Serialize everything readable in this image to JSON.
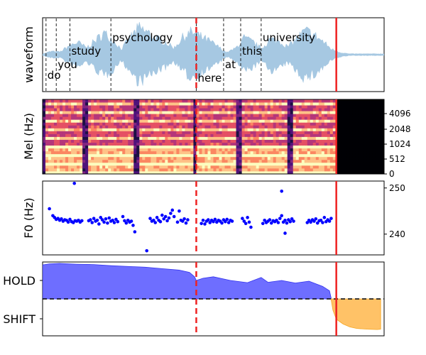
{
  "chart_data": [
    {
      "type": "area",
      "panel": "waveform",
      "ylabel": "waveform",
      "x_range": [
        0,
        1
      ],
      "words": [
        {
          "text": "do",
          "onset": 0.01
        },
        {
          "text": "you",
          "onset": 0.04
        },
        {
          "text": "study",
          "onset": 0.08
        },
        {
          "text": "psychology",
          "onset": 0.2
        },
        {
          "text": "here",
          "onset": 0.45
        },
        {
          "text": "at",
          "onset": 0.53
        },
        {
          "text": "this",
          "onset": 0.58
        },
        {
          "text": "university",
          "onset": 0.64
        }
      ],
      "envelope": [
        0.03,
        0.12,
        0.1,
        0.32,
        0.45,
        0.25,
        0.5,
        0.78,
        0.55,
        0.2,
        0.62,
        0.96,
        0.8,
        0.58,
        0.46,
        0.24,
        0.62,
        0.82,
        0.66,
        0.5,
        0.3,
        0.08,
        0.22,
        0.6,
        0.46,
        0.22,
        0.56,
        0.5,
        0.28,
        0.58,
        0.86,
        0.72,
        0.48,
        0.2,
        0.08,
        0.03,
        0.03,
        0.03,
        0.03,
        0.03
      ]
    },
    {
      "type": "heatmap",
      "panel": "mel-spectrogram",
      "ylabel": "Mel (Hz)",
      "y_ticks": [
        "0",
        "512",
        "1024",
        "2048",
        "4096"
      ],
      "x_range": [
        0,
        1
      ],
      "speech_segments": [
        [
          0.01,
          0.12
        ],
        [
          0.13,
          0.27
        ],
        [
          0.28,
          0.44
        ],
        [
          0.45,
          0.57
        ],
        [
          0.58,
          0.72
        ],
        [
          0.73,
          0.86
        ]
      ]
    },
    {
      "type": "scatter",
      "panel": "pitch",
      "ylabel": "F0 (Hz)",
      "y_ticks": [
        240,
        250
      ],
      "ylim": [
        235.5,
        251.5
      ],
      "points": [
        [
          0.02,
          245.5
        ],
        [
          0.03,
          244.0
        ],
        [
          0.035,
          243.6
        ],
        [
          0.04,
          243.2
        ],
        [
          0.045,
          243.4
        ],
        [
          0.05,
          243.0
        ],
        [
          0.055,
          243.3
        ],
        [
          0.06,
          242.8
        ],
        [
          0.065,
          243.1
        ],
        [
          0.07,
          243.0
        ],
        [
          0.075,
          242.6
        ],
        [
          0.08,
          243.2
        ],
        [
          0.085,
          242.7
        ],
        [
          0.09,
          242.5
        ],
        [
          0.095,
          242.9
        ],
        [
          0.1,
          242.8
        ],
        [
          0.105,
          243.0
        ],
        [
          0.11,
          242.6
        ],
        [
          0.115,
          242.9
        ],
        [
          0.093,
          251.0
        ],
        [
          0.135,
          242.9
        ],
        [
          0.14,
          243.1
        ],
        [
          0.145,
          242.5
        ],
        [
          0.15,
          243.4
        ],
        [
          0.155,
          242.8
        ],
        [
          0.16,
          243.0
        ],
        [
          0.165,
          242.2
        ],
        [
          0.17,
          243.6
        ],
        [
          0.175,
          243.1
        ],
        [
          0.18,
          242.6
        ],
        [
          0.185,
          243.3
        ],
        [
          0.19,
          242.4
        ],
        [
          0.195,
          243.5
        ],
        [
          0.2,
          242.8
        ],
        [
          0.205,
          243.0
        ],
        [
          0.21,
          242.5
        ],
        [
          0.215,
          243.2
        ],
        [
          0.22,
          242.7
        ],
        [
          0.235,
          243.8
        ],
        [
          0.24,
          242.9
        ],
        [
          0.245,
          242.4
        ],
        [
          0.25,
          243.0
        ],
        [
          0.255,
          242.6
        ],
        [
          0.26,
          242.8
        ],
        [
          0.265,
          241.9
        ],
        [
          0.27,
          240.5
        ],
        [
          0.305,
          236.4
        ],
        [
          0.315,
          243.4
        ],
        [
          0.32,
          242.8
        ],
        [
          0.325,
          243.0
        ],
        [
          0.33,
          242.5
        ],
        [
          0.335,
          243.6
        ],
        [
          0.34,
          243.0
        ],
        [
          0.345,
          242.7
        ],
        [
          0.35,
          244.1
        ],
        [
          0.355,
          243.3
        ],
        [
          0.36,
          243.8
        ],
        [
          0.365,
          242.9
        ],
        [
          0.37,
          243.5
        ],
        [
          0.375,
          244.5
        ],
        [
          0.38,
          245.2
        ],
        [
          0.385,
          243.8
        ],
        [
          0.395,
          242.6
        ],
        [
          0.4,
          245.0
        ],
        [
          0.405,
          243.0
        ],
        [
          0.41,
          242.8
        ],
        [
          0.415,
          243.3
        ],
        [
          0.42,
          242.4
        ],
        [
          0.425,
          243.1
        ],
        [
          0.465,
          242.3
        ],
        [
          0.47,
          243.0
        ],
        [
          0.475,
          242.2
        ],
        [
          0.48,
          242.8
        ],
        [
          0.485,
          243.1
        ],
        [
          0.49,
          242.5
        ],
        [
          0.495,
          243.0
        ],
        [
          0.5,
          242.7
        ],
        [
          0.505,
          243.2
        ],
        [
          0.51,
          242.6
        ],
        [
          0.515,
          243.0
        ],
        [
          0.52,
          242.8
        ],
        [
          0.525,
          242.4
        ],
        [
          0.53,
          243.1
        ],
        [
          0.535,
          242.7
        ],
        [
          0.54,
          243.2
        ],
        [
          0.545,
          242.5
        ],
        [
          0.55,
          243.0
        ],
        [
          0.555,
          242.8
        ],
        [
          0.585,
          243.4
        ],
        [
          0.59,
          242.8
        ],
        [
          0.595,
          242.3
        ],
        [
          0.6,
          243.6
        ],
        [
          0.605,
          242.6
        ],
        [
          0.61,
          241.5
        ],
        [
          0.645,
          242.3
        ],
        [
          0.65,
          243.0
        ],
        [
          0.655,
          242.5
        ],
        [
          0.66,
          242.8
        ],
        [
          0.665,
          243.1
        ],
        [
          0.67,
          242.4
        ],
        [
          0.675,
          242.9
        ],
        [
          0.68,
          242.7
        ],
        [
          0.685,
          243.0
        ],
        [
          0.69,
          242.5
        ],
        [
          0.695,
          243.4
        ],
        [
          0.7,
          249.3
        ],
        [
          0.705,
          242.6
        ],
        [
          0.71,
          243.0
        ],
        [
          0.715,
          242.4
        ],
        [
          0.72,
          243.1
        ],
        [
          0.725,
          242.7
        ],
        [
          0.73,
          243.3
        ],
        [
          0.735,
          242.8
        ],
        [
          0.7,
          244.0
        ],
        [
          0.71,
          240.2
        ],
        [
          0.775,
          242.5
        ],
        [
          0.78,
          243.0
        ],
        [
          0.785,
          242.6
        ],
        [
          0.79,
          243.1
        ],
        [
          0.795,
          242.8
        ],
        [
          0.8,
          243.3
        ],
        [
          0.805,
          242.4
        ],
        [
          0.81,
          242.9
        ],
        [
          0.815,
          243.0
        ],
        [
          0.82,
          242.5
        ],
        [
          0.825,
          243.6
        ],
        [
          0.83,
          242.7
        ],
        [
          0.835,
          243.1
        ],
        [
          0.84,
          242.8
        ],
        [
          0.845,
          243.4
        ]
      ]
    },
    {
      "type": "area",
      "panel": "turn-taking",
      "y_ticks": [
        "HOLD",
        "SHIFT"
      ],
      "ylim": [
        -1,
        1
      ],
      "series": [
        {
          "color": "#6666ff",
          "points": [
            [
              0,
              0.92
            ],
            [
              0.02,
              0.95
            ],
            [
              0.05,
              0.96
            ],
            [
              0.1,
              0.94
            ],
            [
              0.15,
              0.93
            ],
            [
              0.2,
              0.9
            ],
            [
              0.25,
              0.88
            ],
            [
              0.3,
              0.86
            ],
            [
              0.35,
              0.82
            ],
            [
              0.4,
              0.78
            ],
            [
              0.43,
              0.72
            ],
            [
              0.445,
              0.6
            ],
            [
              0.45,
              0.5
            ],
            [
              0.47,
              0.56
            ],
            [
              0.5,
              0.6
            ],
            [
              0.55,
              0.5
            ],
            [
              0.6,
              0.44
            ],
            [
              0.64,
              0.58
            ],
            [
              0.66,
              0.45
            ],
            [
              0.7,
              0.5
            ],
            [
              0.74,
              0.43
            ],
            [
              0.78,
              0.48
            ],
            [
              0.82,
              0.34
            ],
            [
              0.84,
              0.22
            ],
            [
              0.845,
              0.02
            ]
          ]
        },
        {
          "color": "#ffbf5f",
          "points": [
            [
              0.845,
              -0.02
            ],
            [
              0.85,
              -0.3
            ],
            [
              0.86,
              -0.55
            ],
            [
              0.88,
              -0.68
            ],
            [
              0.9,
              -0.76
            ],
            [
              0.92,
              -0.8
            ],
            [
              0.95,
              -0.82
            ],
            [
              0.98,
              -0.83
            ],
            [
              0.99,
              -0.82
            ]
          ]
        }
      ]
    }
  ],
  "markers": {
    "dashed_red_x": 0.45,
    "solid_red_x": 0.86,
    "color": "#ee2222"
  }
}
